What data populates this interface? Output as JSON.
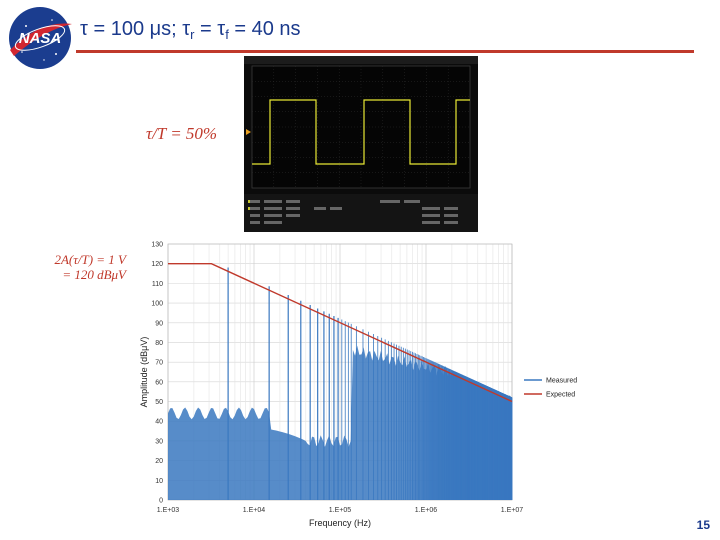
{
  "header": {
    "title_main": "τ = 100 μs; τ",
    "title_sub_r": "r",
    "title_mid": " = τ",
    "title_sub_f": "f",
    "title_end": "  = 40 ns",
    "logo_text": "NASA"
  },
  "annotations": {
    "duty_cycle": "τ/T = 50%",
    "amplitude_line1": "2A(τ/T) = 1 V",
    "amplitude_line2": "= 120 dBμV"
  },
  "footer": {
    "page_number": "15"
  },
  "colors": {
    "title": "#1b3a8c",
    "accent": "#c0392b",
    "measured": "#3a78c0",
    "scope_trace": "#e8e835"
  },
  "chart_data": {
    "type": "line",
    "xlabel": "Frequency (Hz)",
    "ylabel": "Amplitude (dBμV)",
    "x_scale": "log",
    "xlim": [
      1000,
      10000000
    ],
    "ylim": [
      0,
      130
    ],
    "x_ticks": [
      "1.E+03",
      "1.E+04",
      "1.E+05",
      "1.E+06",
      "1.E+07"
    ],
    "y_ticks": [
      0,
      10,
      20,
      30,
      40,
      50,
      60,
      70,
      80,
      90,
      100,
      110,
      120,
      130
    ],
    "legend_position": "right",
    "grid": true,
    "series": [
      {
        "name": "Measured",
        "color": "#3a78c0"
      },
      {
        "name": "Expected",
        "color": "#c0392b",
        "points": [
          [
            1000,
            120
          ],
          [
            3200,
            120
          ],
          [
            10000000,
            50
          ]
        ]
      }
    ]
  }
}
